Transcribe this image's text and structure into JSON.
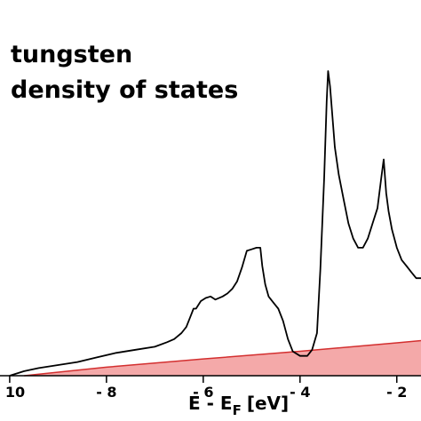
{
  "chart_data": {
    "type": "line",
    "title_lines": [
      "tungsten",
      "density of states"
    ],
    "xlabel": {
      "main": "E - E",
      "sub": "F",
      "unit": "[eV]"
    },
    "ylabel": "",
    "xlim": [
      -10.2,
      -1.5
    ],
    "ylim": [
      0,
      1.0
    ],
    "x_ticks": [
      -10,
      -8,
      -6,
      -4,
      -2
    ],
    "x_tick_labels": [
      "- 10",
      "- 8",
      "- 6",
      "- 4",
      "- 2"
    ],
    "grid": false,
    "colors": {
      "curve": "#000000",
      "fill": "#f4a9a9",
      "fill_edge": "#d32f2f",
      "axis": "#000000"
    },
    "series": [
      {
        "style": "line",
        "x": [
          -10,
          -9.7,
          -9.4,
          -9.0,
          -8.6,
          -8.2,
          -7.8,
          -7.4,
          -7.0,
          -6.75,
          -6.6,
          -6.45,
          -6.35,
          -6.25,
          -6.2,
          -6.15,
          -6.05,
          -5.95,
          -5.85,
          -5.75,
          -5.6,
          -5.5,
          -5.4,
          -5.3,
          -5.2,
          -5.1,
          -5.0,
          -4.9,
          -4.82,
          -4.78,
          -4.72,
          -4.65,
          -4.55,
          -4.45,
          -4.35,
          -4.25,
          -4.15,
          -4.0,
          -3.85,
          -3.75,
          -3.65,
          -3.58,
          -3.5,
          -3.45,
          -3.42,
          -3.38,
          -3.33,
          -3.28,
          -3.2,
          -3.1,
          -3.0,
          -2.9,
          -2.8,
          -2.7,
          -2.6,
          -2.5,
          -2.4,
          -2.32,
          -2.27,
          -2.22,
          -2.17,
          -2.1,
          -2.0,
          -1.9,
          -1.8,
          -1.7,
          -1.6,
          -1.5
        ],
        "y": [
          0.0,
          0.015,
          0.025,
          0.035,
          0.045,
          0.06,
          0.075,
          0.085,
          0.095,
          0.11,
          0.12,
          0.14,
          0.16,
          0.2,
          0.22,
          0.22,
          0.245,
          0.255,
          0.26,
          0.25,
          0.26,
          0.27,
          0.285,
          0.31,
          0.355,
          0.41,
          0.415,
          0.42,
          0.42,
          0.36,
          0.3,
          0.26,
          0.24,
          0.22,
          0.18,
          0.12,
          0.08,
          0.065,
          0.065,
          0.085,
          0.14,
          0.35,
          0.65,
          0.9,
          1.0,
          0.95,
          0.85,
          0.75,
          0.66,
          0.58,
          0.5,
          0.45,
          0.42,
          0.42,
          0.45,
          0.5,
          0.55,
          0.65,
          0.71,
          0.6,
          0.54,
          0.48,
          0.42,
          0.38,
          0.36,
          0.34,
          0.32,
          0.32
        ]
      },
      {
        "style": "area",
        "x": [
          -9.7,
          -8,
          -6,
          -4,
          -2,
          -1.5
        ],
        "y": [
          0.0,
          0.028,
          0.055,
          0.08,
          0.108,
          0.115
        ]
      }
    ]
  }
}
